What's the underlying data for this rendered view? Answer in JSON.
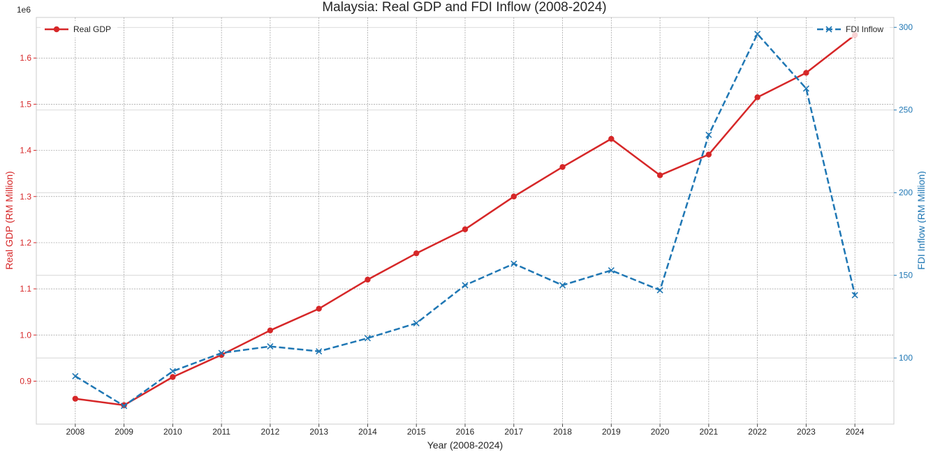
{
  "chart_data": {
    "type": "line",
    "title": "Malaysia: Real GDP and FDI Inflow (2008-2024)",
    "xlabel": "Year (2008-2024)",
    "x": [
      "2008",
      "2009",
      "2010",
      "2011",
      "2012",
      "2013",
      "2014",
      "2015",
      "2016",
      "2017",
      "2018",
      "2019",
      "2020",
      "2021",
      "2022",
      "2023",
      "2024"
    ],
    "xlim": [
      2007.2,
      2024.8
    ],
    "y_left": {
      "label": "Real GDP (RM Million)",
      "offset_text": "1e6",
      "ticks": [
        "0.9",
        "1.0",
        "1.1",
        "1.2",
        "1.3",
        "1.4",
        "1.5",
        "1.6"
      ],
      "tick_values": [
        0.9,
        1.0,
        1.1,
        1.2,
        1.3,
        1.4,
        1.5,
        1.6
      ],
      "ylim": [
        0.807,
        1.688
      ],
      "color": "#d62728"
    },
    "y_right": {
      "label": "FDI Inflow (RM Million)",
      "ticks": [
        "100",
        "150",
        "200",
        "250",
        "300"
      ],
      "tick_values": [
        100,
        150,
        200,
        250,
        300
      ],
      "ylim": [
        60,
        306
      ],
      "color": "#1f77b4"
    },
    "series": [
      {
        "name": "Real GDP",
        "axis": "left",
        "color": "#d62728",
        "linestyle": "solid",
        "marker": "circle",
        "values": [
          0.862,
          0.848,
          0.909,
          0.957,
          1.01,
          1.057,
          1.12,
          1.177,
          1.229,
          1.3,
          1.364,
          1.425,
          1.346,
          1.391,
          1.515,
          1.568,
          1.65
        ]
      },
      {
        "name": "FDI Inflow",
        "axis": "right",
        "color": "#1f77b4",
        "linestyle": "dashed",
        "marker": "x",
        "values": [
          89,
          71,
          92,
          103,
          107,
          104,
          112,
          121,
          144,
          157,
          144,
          153,
          141,
          235,
          296,
          263,
          138
        ]
      }
    ],
    "grid": true,
    "legend": [
      {
        "series": "Real GDP",
        "placement": "top-left"
      },
      {
        "series": "FDI Inflow",
        "placement": "top-right"
      }
    ]
  }
}
